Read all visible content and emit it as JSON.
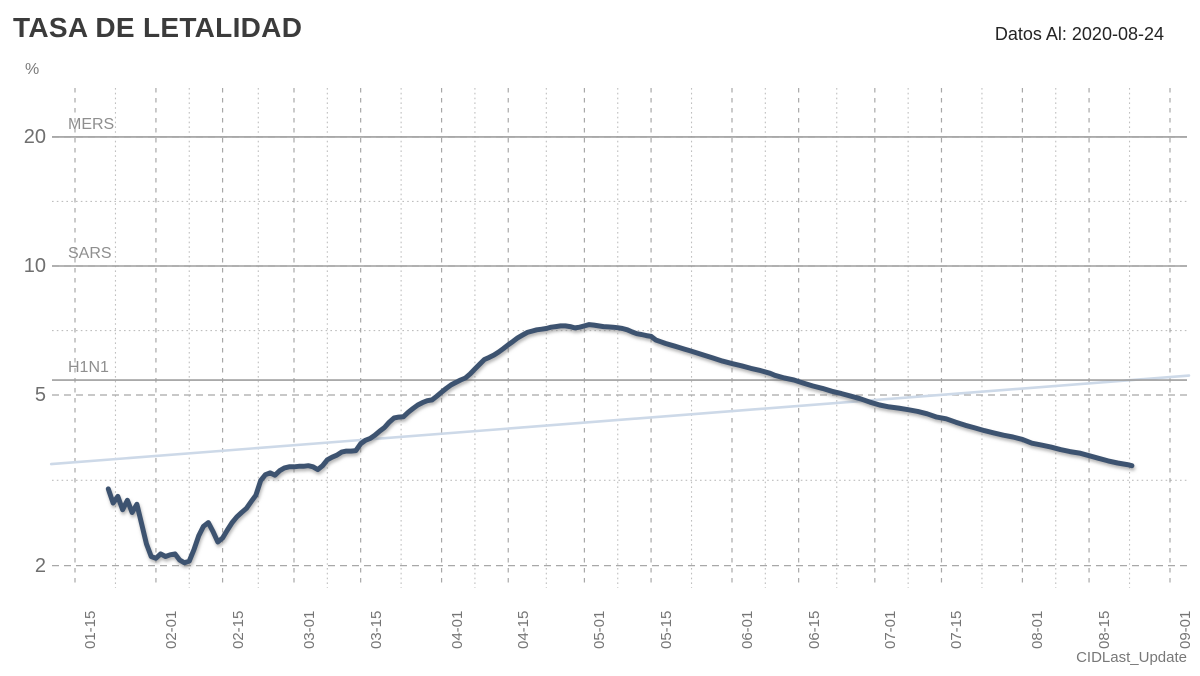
{
  "header": {
    "title": "TASA DE LETALIDAD",
    "data_as_of": "Datos Al: 2020-08-24"
  },
  "footnote": "CIDLast_Update",
  "colors": {
    "main_line": "#3d5270",
    "trend_line": "#cdd9e8",
    "reference_line": "#9e9e9e",
    "grid_major": "#a8a8a8",
    "grid_minor": "#bfbfbf",
    "title_text": "#3b3b3b",
    "axis_text": "#757575"
  },
  "chart_data": {
    "type": "line",
    "title": "TASA DE LETALIDAD",
    "subtitle": "Datos Al: 2020-08-24",
    "unit_label": "%",
    "y_scale": "log",
    "ylabel": "%",
    "xlabel": "",
    "ylim": [
      1.77,
      26
    ],
    "y_ticks": [
      20,
      10,
      5,
      2
    ],
    "x_ticks": [
      "01-15",
      "02-01",
      "02-15",
      "03-01",
      "03-15",
      "04-01",
      "04-15",
      "05-01",
      "05-15",
      "06-01",
      "06-15",
      "07-01",
      "07-15",
      "08-01",
      "08-15",
      "09-01"
    ],
    "grid": true,
    "legend_position": "none",
    "reference_lines": [
      {
        "label": "MERS",
        "value": 20.0
      },
      {
        "label": "SARS",
        "value": 10.0
      },
      {
        "label": "H1N1",
        "value": 5.42
      }
    ],
    "series": [
      {
        "name": "tasa_de_letalidad",
        "style": "main",
        "points": [
          [
            "01-22",
            3.02
          ],
          [
            "01-23",
            2.8
          ],
          [
            "01-24",
            2.9
          ],
          [
            "01-25",
            2.7
          ],
          [
            "01-26",
            2.84
          ],
          [
            "01-27",
            2.66
          ],
          [
            "01-28",
            2.78
          ],
          [
            "01-29",
            2.5
          ],
          [
            "01-30",
            2.25
          ],
          [
            "01-31",
            2.1
          ],
          [
            "02-01",
            2.08
          ],
          [
            "02-02",
            2.13
          ],
          [
            "02-03",
            2.1
          ],
          [
            "02-04",
            2.12
          ],
          [
            "02-05",
            2.13
          ],
          [
            "02-06",
            2.06
          ],
          [
            "02-07",
            2.03
          ],
          [
            "02-08",
            2.05
          ],
          [
            "02-09",
            2.18
          ],
          [
            "02-10",
            2.35
          ],
          [
            "02-11",
            2.47
          ],
          [
            "02-12",
            2.52
          ],
          [
            "02-13",
            2.4
          ],
          [
            "02-14",
            2.27
          ],
          [
            "02-15",
            2.32
          ],
          [
            "02-16",
            2.42
          ],
          [
            "02-17",
            2.52
          ],
          [
            "02-18",
            2.6
          ],
          [
            "02-19",
            2.66
          ],
          [
            "02-20",
            2.72
          ],
          [
            "02-21",
            2.82
          ],
          [
            "02-22",
            2.92
          ],
          [
            "02-23",
            3.16
          ],
          [
            "02-24",
            3.26
          ],
          [
            "02-25",
            3.29
          ],
          [
            "02-26",
            3.25
          ],
          [
            "02-27",
            3.33
          ],
          [
            "02-28",
            3.38
          ],
          [
            "02-29",
            3.4
          ],
          [
            "03-01",
            3.4
          ],
          [
            "03-02",
            3.41
          ],
          [
            "03-03",
            3.41
          ],
          [
            "03-04",
            3.42
          ],
          [
            "03-05",
            3.4
          ],
          [
            "03-06",
            3.35
          ],
          [
            "03-07",
            3.42
          ],
          [
            "03-08",
            3.53
          ],
          [
            "03-09",
            3.58
          ],
          [
            "03-10",
            3.62
          ],
          [
            "03-11",
            3.68
          ],
          [
            "03-12",
            3.7
          ],
          [
            "03-13",
            3.7
          ],
          [
            "03-14",
            3.71
          ],
          [
            "03-15",
            3.85
          ],
          [
            "03-16",
            3.92
          ],
          [
            "03-17",
            3.96
          ],
          [
            "03-18",
            4.03
          ],
          [
            "03-19",
            4.12
          ],
          [
            "03-20",
            4.2
          ],
          [
            "03-21",
            4.32
          ],
          [
            "03-22",
            4.42
          ],
          [
            "03-23",
            4.44
          ],
          [
            "03-24",
            4.45
          ],
          [
            "03-25",
            4.56
          ],
          [
            "03-26",
            4.65
          ],
          [
            "03-27",
            4.74
          ],
          [
            "03-28",
            4.8
          ],
          [
            "03-29",
            4.85
          ],
          [
            "03-30",
            4.87
          ],
          [
            "03-31",
            4.97
          ],
          [
            "04-01",
            5.08
          ],
          [
            "04-02",
            5.18
          ],
          [
            "04-03",
            5.28
          ],
          [
            "04-04",
            5.35
          ],
          [
            "04-05",
            5.42
          ],
          [
            "04-06",
            5.48
          ],
          [
            "04-07",
            5.6
          ],
          [
            "04-08",
            5.75
          ],
          [
            "04-09",
            5.9
          ],
          [
            "04-10",
            6.05
          ],
          [
            "04-11",
            6.12
          ],
          [
            "04-12",
            6.2
          ],
          [
            "04-13",
            6.3
          ],
          [
            "04-14",
            6.42
          ],
          [
            "04-15",
            6.55
          ],
          [
            "04-16",
            6.67
          ],
          [
            "04-17",
            6.8
          ],
          [
            "04-18",
            6.9
          ],
          [
            "04-19",
            7.0
          ],
          [
            "04-20",
            7.05
          ],
          [
            "04-21",
            7.1
          ],
          [
            "04-22",
            7.12
          ],
          [
            "04-23",
            7.15
          ],
          [
            "04-24",
            7.2
          ],
          [
            "04-25",
            7.22
          ],
          [
            "04-26",
            7.25
          ],
          [
            "04-27",
            7.25
          ],
          [
            "04-28",
            7.22
          ],
          [
            "04-29",
            7.17
          ],
          [
            "04-30",
            7.2
          ],
          [
            "05-01",
            7.25
          ],
          [
            "05-02",
            7.3
          ],
          [
            "05-03",
            7.28
          ],
          [
            "05-04",
            7.25
          ],
          [
            "05-05",
            7.22
          ],
          [
            "05-06",
            7.21
          ],
          [
            "05-07",
            7.2
          ],
          [
            "05-08",
            7.18
          ],
          [
            "05-09",
            7.15
          ],
          [
            "05-10",
            7.1
          ],
          [
            "05-11",
            7.02
          ],
          [
            "05-12",
            6.95
          ],
          [
            "05-13",
            6.92
          ],
          [
            "05-14",
            6.88
          ],
          [
            "05-15",
            6.85
          ],
          [
            "05-16",
            6.72
          ],
          [
            "05-17",
            6.66
          ],
          [
            "05-18",
            6.6
          ],
          [
            "05-19",
            6.55
          ],
          [
            "05-20",
            6.5
          ],
          [
            "05-21",
            6.45
          ],
          [
            "05-22",
            6.4
          ],
          [
            "05-23",
            6.35
          ],
          [
            "05-25",
            6.25
          ],
          [
            "05-26",
            6.2
          ],
          [
            "05-28",
            6.1
          ],
          [
            "05-30",
            6.0
          ],
          [
            "06-01",
            5.92
          ],
          [
            "06-03",
            5.85
          ],
          [
            "06-05",
            5.77
          ],
          [
            "06-07",
            5.7
          ],
          [
            "06-09",
            5.62
          ],
          [
            "06-10",
            5.56
          ],
          [
            "06-12",
            5.48
          ],
          [
            "06-14",
            5.42
          ],
          [
            "06-16",
            5.33
          ],
          [
            "06-18",
            5.25
          ],
          [
            "06-20",
            5.18
          ],
          [
            "06-22",
            5.1
          ],
          [
            "06-24",
            5.04
          ],
          [
            "06-26",
            4.97
          ],
          [
            "06-28",
            4.9
          ],
          [
            "06-30",
            4.81
          ],
          [
            "07-02",
            4.74
          ],
          [
            "07-04",
            4.69
          ],
          [
            "07-06",
            4.66
          ],
          [
            "07-08",
            4.62
          ],
          [
            "07-10",
            4.58
          ],
          [
            "07-12",
            4.52
          ],
          [
            "07-14",
            4.44
          ],
          [
            "07-16",
            4.4
          ],
          [
            "07-18",
            4.32
          ],
          [
            "07-20",
            4.25
          ],
          [
            "07-22",
            4.19
          ],
          [
            "07-24",
            4.13
          ],
          [
            "07-26",
            4.08
          ],
          [
            "07-28",
            4.03
          ],
          [
            "07-30",
            3.99
          ],
          [
            "08-01",
            3.94
          ],
          [
            "08-03",
            3.86
          ],
          [
            "08-05",
            3.82
          ],
          [
            "08-07",
            3.78
          ],
          [
            "08-09",
            3.73
          ],
          [
            "08-11",
            3.69
          ],
          [
            "08-13",
            3.66
          ],
          [
            "08-15",
            3.61
          ],
          [
            "08-17",
            3.56
          ],
          [
            "08-19",
            3.51
          ],
          [
            "08-21",
            3.47
          ],
          [
            "08-23",
            3.44
          ],
          [
            "08-24",
            3.42
          ]
        ]
      },
      {
        "name": "cidlast_update_trend",
        "style": "trend",
        "points": [
          [
            "01-10",
            3.45
          ],
          [
            "09-05",
            5.55
          ]
        ]
      }
    ],
    "footnote": "CIDLast_Update"
  }
}
